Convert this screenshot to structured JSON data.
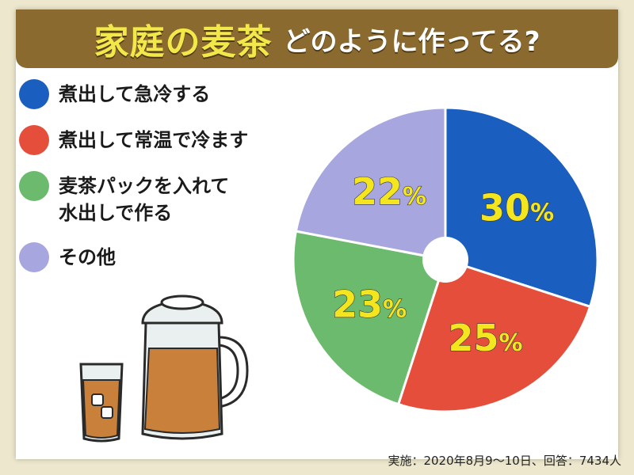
{
  "header": {
    "title_main": "家庭の麦茶",
    "title_sub": "どのように作ってる?"
  },
  "footnote": "実施：2020年8月9～10日、回答：7434人",
  "chart_data": {
    "type": "pie",
    "title": "家庭の麦茶 どのように作ってる?",
    "unit": "%",
    "legend_position": "left",
    "slices": [
      {
        "label": "煮出して急冷する",
        "value": 30,
        "color": "#1a5fbf"
      },
      {
        "label": "煮出して常温で冷ます",
        "value": 25,
        "color": "#e54e3b"
      },
      {
        "label": "麦茶パックを入れて\n水出しで作る",
        "value": 23,
        "color": "#6cba6e"
      },
      {
        "label": "その他",
        "value": 22,
        "color": "#a7a6df"
      }
    ]
  },
  "illustration": {
    "icon": "barley-tea-pitcher-and-glass-icon",
    "tea_color": "#c8803a",
    "glass_color": "#eaf0ef"
  }
}
